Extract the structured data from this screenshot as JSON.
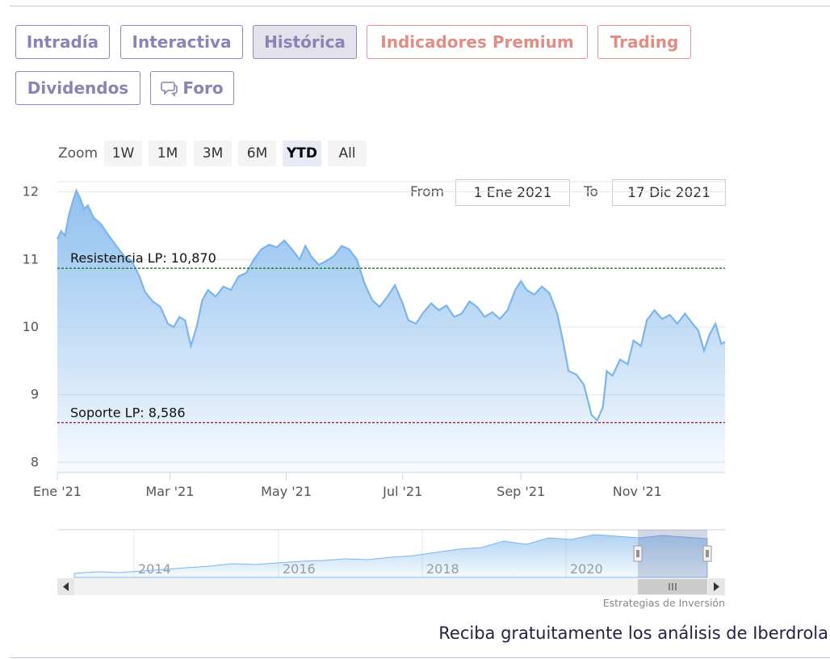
{
  "tabs": [
    {
      "label": "Intradía",
      "active": false,
      "premium": false,
      "icon": null
    },
    {
      "label": "Interactiva",
      "active": false,
      "premium": false,
      "icon": null
    },
    {
      "label": "Histórica",
      "active": true,
      "premium": false,
      "icon": null
    },
    {
      "label": "Indicadores Premium",
      "active": false,
      "premium": true,
      "icon": null
    },
    {
      "label": "Trading",
      "active": false,
      "premium": true,
      "icon": null
    },
    {
      "label": "Dividendos",
      "active": false,
      "premium": false,
      "icon": null
    },
    {
      "label": "Foro",
      "active": false,
      "premium": false,
      "icon": "speech-bubbles-icon"
    }
  ],
  "zoom": {
    "label": "Zoom",
    "buttons": [
      "1W",
      "1M",
      "3M",
      "6M",
      "YTD",
      "All"
    ],
    "selected": "YTD"
  },
  "range": {
    "from_label": "From",
    "from_value": "1 Ene 2021",
    "to_label": "To",
    "to_value": "17 Dic 2021"
  },
  "chart_data": {
    "type": "area",
    "title": "",
    "xlabel": "",
    "ylabel": "",
    "x_range": [
      "2021-01-01",
      "2021-12-17"
    ],
    "ylim": [
      7.85,
      12.15
    ],
    "y_ticks": [
      8,
      9,
      10,
      11,
      12
    ],
    "x_ticks": [
      {
        "date": "2021-01-01",
        "label": "Ene '21"
      },
      {
        "date": "2021-03-01",
        "label": "Mar '21"
      },
      {
        "date": "2021-05-01",
        "label": "May '21"
      },
      {
        "date": "2021-07-01",
        "label": "Jul '21"
      },
      {
        "date": "2021-09-01",
        "label": "Sep '21"
      },
      {
        "date": "2021-11-01",
        "label": "Nov '21"
      }
    ],
    "grid": true,
    "series": [
      {
        "color": "#7cb5ec",
        "points": [
          [
            "2021-01-01",
            11.3
          ],
          [
            "2021-01-03",
            11.42
          ],
          [
            "2021-01-05",
            11.35
          ],
          [
            "2021-01-07",
            11.65
          ],
          [
            "2021-01-09",
            11.85
          ],
          [
            "2021-01-11",
            12.02
          ],
          [
            "2021-01-13",
            11.9
          ],
          [
            "2021-01-15",
            11.75
          ],
          [
            "2021-01-17",
            11.8
          ],
          [
            "2021-01-20",
            11.62
          ],
          [
            "2021-01-24",
            11.52
          ],
          [
            "2021-01-28",
            11.35
          ],
          [
            "2021-02-01",
            11.2
          ],
          [
            "2021-02-05",
            11.05
          ],
          [
            "2021-02-09",
            10.98
          ],
          [
            "2021-02-13",
            10.75
          ],
          [
            "2021-02-16",
            10.52
          ],
          [
            "2021-02-20",
            10.38
          ],
          [
            "2021-02-24",
            10.3
          ],
          [
            "2021-02-28",
            10.05
          ],
          [
            "2021-03-03",
            10.0
          ],
          [
            "2021-03-06",
            10.15
          ],
          [
            "2021-03-09",
            10.1
          ],
          [
            "2021-03-12",
            9.72
          ],
          [
            "2021-03-15",
            10.0
          ],
          [
            "2021-03-18",
            10.4
          ],
          [
            "2021-03-21",
            10.55
          ],
          [
            "2021-03-25",
            10.45
          ],
          [
            "2021-03-29",
            10.6
          ],
          [
            "2021-04-02",
            10.55
          ],
          [
            "2021-04-06",
            10.75
          ],
          [
            "2021-04-10",
            10.8
          ],
          [
            "2021-04-14",
            11.0
          ],
          [
            "2021-04-18",
            11.15
          ],
          [
            "2021-04-22",
            11.22
          ],
          [
            "2021-04-26",
            11.18
          ],
          [
            "2021-04-30",
            11.28
          ],
          [
            "2021-05-04",
            11.15
          ],
          [
            "2021-05-08",
            11.0
          ],
          [
            "2021-05-11",
            11.2
          ],
          [
            "2021-05-14",
            11.05
          ],
          [
            "2021-05-18",
            10.92
          ],
          [
            "2021-05-22",
            10.98
          ],
          [
            "2021-05-26",
            11.05
          ],
          [
            "2021-05-30",
            11.2
          ],
          [
            "2021-06-03",
            11.15
          ],
          [
            "2021-06-07",
            11.0
          ],
          [
            "2021-06-11",
            10.65
          ],
          [
            "2021-06-15",
            10.4
          ],
          [
            "2021-06-19",
            10.3
          ],
          [
            "2021-06-23",
            10.45
          ],
          [
            "2021-06-27",
            10.62
          ],
          [
            "2021-07-01",
            10.35
          ],
          [
            "2021-07-04",
            10.1
          ],
          [
            "2021-07-08",
            10.05
          ],
          [
            "2021-07-12",
            10.22
          ],
          [
            "2021-07-16",
            10.35
          ],
          [
            "2021-07-20",
            10.25
          ],
          [
            "2021-07-24",
            10.32
          ],
          [
            "2021-07-28",
            10.15
          ],
          [
            "2021-08-01",
            10.2
          ],
          [
            "2021-08-05",
            10.38
          ],
          [
            "2021-08-09",
            10.3
          ],
          [
            "2021-08-13",
            10.15
          ],
          [
            "2021-08-17",
            10.22
          ],
          [
            "2021-08-21",
            10.12
          ],
          [
            "2021-08-25",
            10.25
          ],
          [
            "2021-08-29",
            10.55
          ],
          [
            "2021-09-01",
            10.68
          ],
          [
            "2021-09-04",
            10.55
          ],
          [
            "2021-09-08",
            10.48
          ],
          [
            "2021-09-12",
            10.6
          ],
          [
            "2021-09-16",
            10.5
          ],
          [
            "2021-09-20",
            10.2
          ],
          [
            "2021-09-23",
            9.8
          ],
          [
            "2021-09-26",
            9.35
          ],
          [
            "2021-09-30",
            9.3
          ],
          [
            "2021-10-04",
            9.15
          ],
          [
            "2021-10-08",
            8.7
          ],
          [
            "2021-10-11",
            8.62
          ],
          [
            "2021-10-14",
            8.82
          ],
          [
            "2021-10-16",
            9.35
          ],
          [
            "2021-10-19",
            9.28
          ],
          [
            "2021-10-23",
            9.52
          ],
          [
            "2021-10-27",
            9.45
          ],
          [
            "2021-10-30",
            9.8
          ],
          [
            "2021-11-03",
            9.72
          ],
          [
            "2021-11-06",
            10.1
          ],
          [
            "2021-11-10",
            10.25
          ],
          [
            "2021-11-14",
            10.12
          ],
          [
            "2021-11-18",
            10.18
          ],
          [
            "2021-11-22",
            10.05
          ],
          [
            "2021-11-26",
            10.2
          ],
          [
            "2021-11-30",
            10.05
          ],
          [
            "2021-12-03",
            9.95
          ],
          [
            "2021-12-06",
            9.65
          ],
          [
            "2021-12-09",
            9.9
          ],
          [
            "2021-12-12",
            10.05
          ],
          [
            "2021-12-15",
            9.75
          ],
          [
            "2021-12-17",
            9.78
          ]
        ]
      }
    ],
    "plot_lines": [
      {
        "label": "Resistencia LP: 10,870",
        "value": 10.87,
        "color": "#1a7a1a",
        "style": "dashed"
      },
      {
        "label": "Soporte LP: 8,586",
        "value": 8.586,
        "color": "#8b1a2a",
        "style": "dashed"
      }
    ],
    "navigator": {
      "x_labels": [
        "2014",
        "2016",
        "2018",
        "2020"
      ],
      "selected_range": [
        "2021-01-01",
        "2021-12-17"
      ]
    }
  },
  "credits": "Estrategias de Inversión",
  "footer_text": "Reciba gratuitamente los análisis de Iberdrola"
}
